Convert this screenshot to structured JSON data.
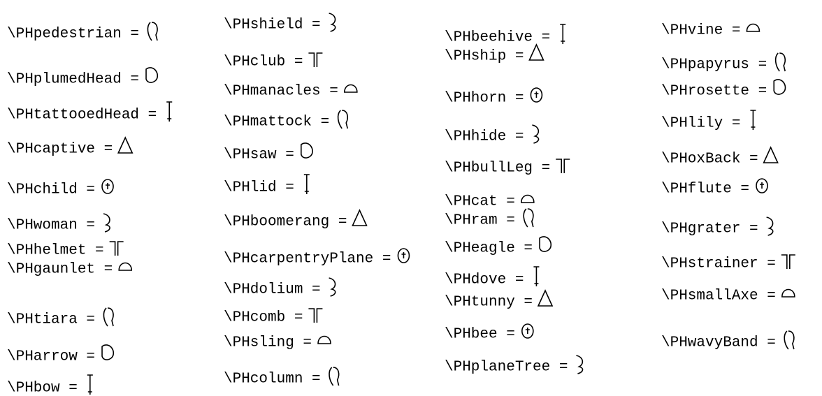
{
  "columns": [
    {
      "entries": [
        "\\PHpedestrian =",
        "\\PHplumedHead =",
        "\\PHtattooedHead =",
        "\\PHcaptive =",
        "\\PHchild =",
        "\\PHwoman =",
        "\\PHhelmet =",
        "\\PHgaunlet =",
        "\\PHtiara =",
        "\\PHarrow =",
        "\\PHbow ="
      ]
    },
    {
      "entries": [
        "\\PHshield =",
        "\\PHclub =",
        "\\PHmanacles =",
        "\\PHmattock =",
        "\\PHsaw =",
        "\\PHlid =",
        "\\PHboomerang =",
        "\\PHcarpentryPlane =",
        "\\PHdolium =",
        "\\PHcomb =",
        "\\PHsling =",
        "\\PHcolumn ="
      ]
    },
    {
      "entries": [
        "\\PHbeehive =",
        "\\PHship =",
        "\\PHhorn =",
        "\\PHhide =",
        "\\PHbullLeg =",
        "\\PHcat =",
        "\\PHram =",
        "\\PHeagle =",
        "\\PHdove =",
        "\\PHtunny =",
        "\\PHbee =",
        "\\PHplaneTree ="
      ]
    },
    {
      "entries": [
        "\\PHvine =",
        "\\PHpapyrus =",
        "\\PHrosette =",
        "\\PHlily =",
        "\\PHoxBack =",
        "\\PHflute =",
        "\\PHgrater =",
        "\\PHstrainer =",
        "\\PHsmallAxe =",
        "\\PHwavyBand ="
      ]
    }
  ]
}
